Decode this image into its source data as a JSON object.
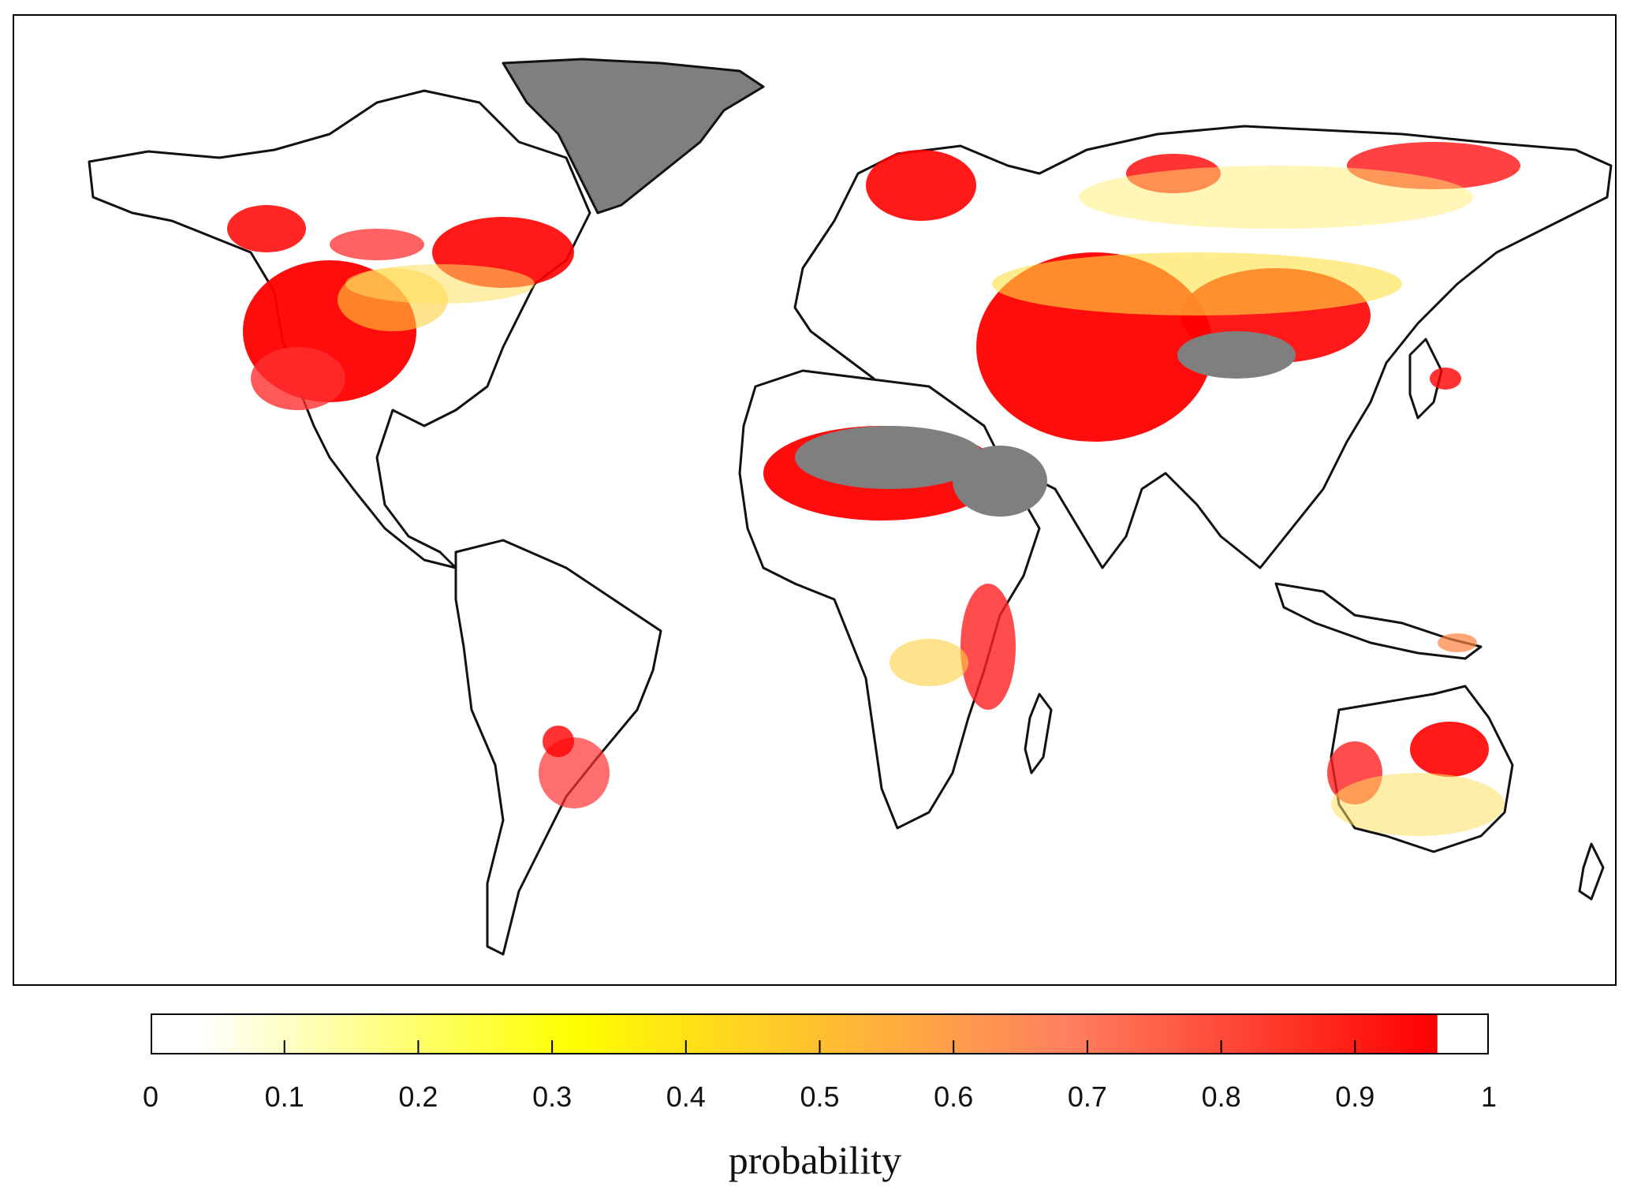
{
  "legend": {
    "title": "probability",
    "ticks": [
      "0",
      "0.1",
      "0.2",
      "0.3",
      "0.4",
      "0.5",
      "0.6",
      "0.7",
      "0.8",
      "0.9",
      "1"
    ],
    "range": [
      0,
      1
    ],
    "colors": {
      "low": "#ffffff",
      "mid": "#ffff00",
      "high": "#ff0000",
      "no_data": "#7f7f7f",
      "coastline": "#000000"
    }
  },
  "map": {
    "projection": "equirectangular world",
    "high_probability_regions": [
      "western United States",
      "central and eastern Canada",
      "Scandinavia",
      "northern Russia",
      "Middle East and Central Asia",
      "Sahel and northern Sahara margin",
      "East Africa",
      "western and northern Australia",
      "south-central South America"
    ],
    "no_data_regions": [
      "Greenland",
      "Sahara",
      "Arabian Peninsula (south)",
      "Tibetan Plateau"
    ]
  }
}
